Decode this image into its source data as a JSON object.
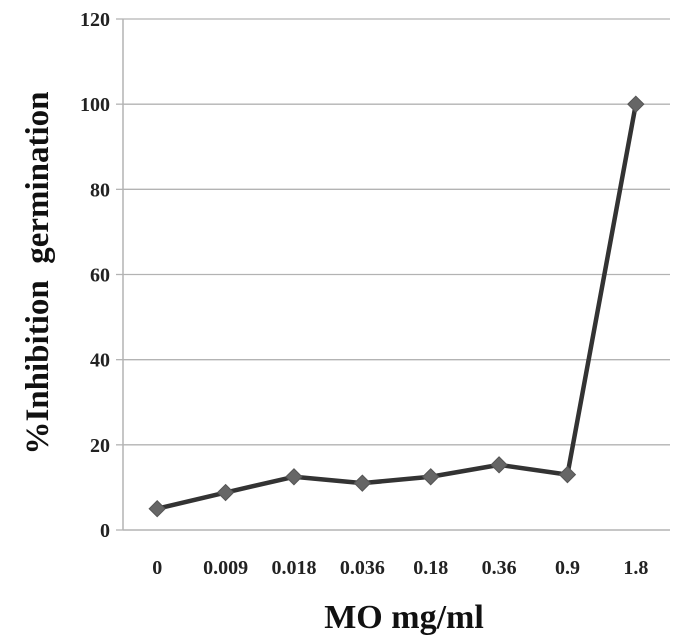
{
  "chart_data": {
    "type": "line",
    "title": "",
    "xlabel": "MO mg/ml",
    "ylabel": "%Inhibition  germination",
    "categories": [
      "0",
      "0.009",
      "0.018",
      "0.036",
      "0.18",
      "0.36",
      "0.9",
      "1.8"
    ],
    "values": [
      5,
      8.8,
      12.5,
      11,
      12.5,
      15.3,
      13,
      100
    ],
    "ylim": [
      0,
      120
    ],
    "yticks": [
      "0",
      "20",
      "40",
      "60",
      "80",
      "100",
      "120"
    ],
    "grid": true,
    "legend": "none",
    "line_color": "#333333",
    "marker_color": "#666666",
    "grid_color": "#b3b3b3"
  }
}
